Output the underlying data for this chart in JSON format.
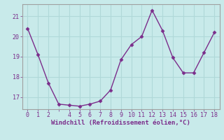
{
  "x": [
    0,
    1,
    2,
    3,
    4,
    5,
    6,
    7,
    8,
    9,
    10,
    11,
    12,
    13,
    14,
    15,
    16,
    17,
    18
  ],
  "y": [
    20.4,
    19.1,
    17.7,
    16.65,
    16.6,
    16.55,
    16.65,
    16.8,
    17.35,
    18.85,
    19.6,
    20.0,
    21.3,
    20.3,
    18.95,
    18.2,
    18.2,
    19.2,
    20.2
  ],
  "line_color": "#7b2d8b",
  "marker_color": "#7b2d8b",
  "bg_color": "#c8eaea",
  "grid_color": "#b0d8d8",
  "xlabel": "Windchill (Refroidissement éolien,°C)",
  "xlabel_color": "#7b2d8b",
  "tick_color": "#7b2d8b",
  "spine_color": "#a0a0a0",
  "ylim": [
    16.4,
    21.6
  ],
  "xlim": [
    -0.5,
    18.5
  ],
  "yticks": [
    17,
    18,
    19,
    20,
    21
  ],
  "xticks": [
    0,
    1,
    2,
    4,
    5,
    6,
    7,
    8,
    9,
    10,
    11,
    12,
    13,
    14,
    15,
    16,
    17,
    18
  ],
  "figsize": [
    3.2,
    2.0
  ],
  "dpi": 100
}
